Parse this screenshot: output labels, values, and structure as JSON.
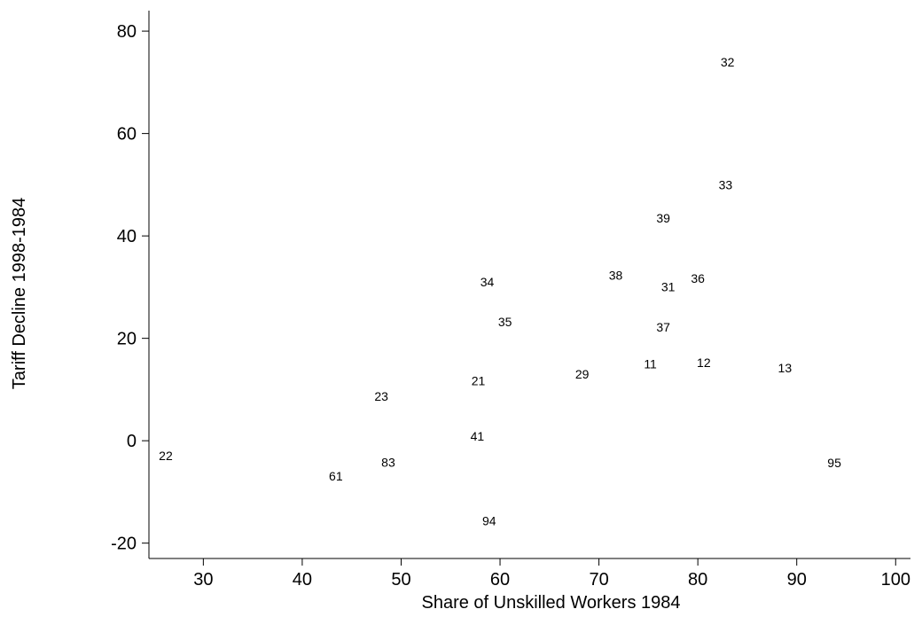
{
  "chart_data": {
    "type": "scatter",
    "xlabel": "Share of Unskilled Workers 1984",
    "ylabel": "Tariff Decline 1998-1984",
    "xlim": [
      24.5,
      101.5
    ],
    "ylim": [
      -23,
      84
    ],
    "xticks": [
      30,
      40,
      50,
      60,
      70,
      80,
      90,
      100
    ],
    "yticks": [
      -20,
      0,
      20,
      40,
      60,
      80
    ],
    "grid": false,
    "points": [
      {
        "label": "32",
        "x": 83.0,
        "y": 74.0
      },
      {
        "label": "33",
        "x": 82.8,
        "y": 50.0
      },
      {
        "label": "39",
        "x": 76.5,
        "y": 43.5
      },
      {
        "label": "34",
        "x": 58.7,
        "y": 31.0
      },
      {
        "label": "38",
        "x": 71.7,
        "y": 32.3
      },
      {
        "label": "31",
        "x": 77.0,
        "y": 30.1
      },
      {
        "label": "36",
        "x": 80.0,
        "y": 31.7
      },
      {
        "label": "35",
        "x": 60.5,
        "y": 23.2
      },
      {
        "label": "37",
        "x": 76.5,
        "y": 22.2
      },
      {
        "label": "11",
        "x": 75.2,
        "y": 15.0
      },
      {
        "label": "12",
        "x": 80.6,
        "y": 15.3
      },
      {
        "label": "13",
        "x": 88.8,
        "y": 14.2
      },
      {
        "label": "29",
        "x": 68.3,
        "y": 13.0
      },
      {
        "label": "21",
        "x": 57.8,
        "y": 11.7
      },
      {
        "label": "23",
        "x": 48.0,
        "y": 8.7
      },
      {
        "label": "41",
        "x": 57.7,
        "y": 0.9
      },
      {
        "label": "22",
        "x": 26.2,
        "y": -2.9
      },
      {
        "label": "83",
        "x": 48.7,
        "y": -4.2
      },
      {
        "label": "95",
        "x": 93.8,
        "y": -4.3
      },
      {
        "label": "61",
        "x": 43.4,
        "y": -6.9
      },
      {
        "label": "94",
        "x": 58.9,
        "y": -15.6
      }
    ]
  }
}
